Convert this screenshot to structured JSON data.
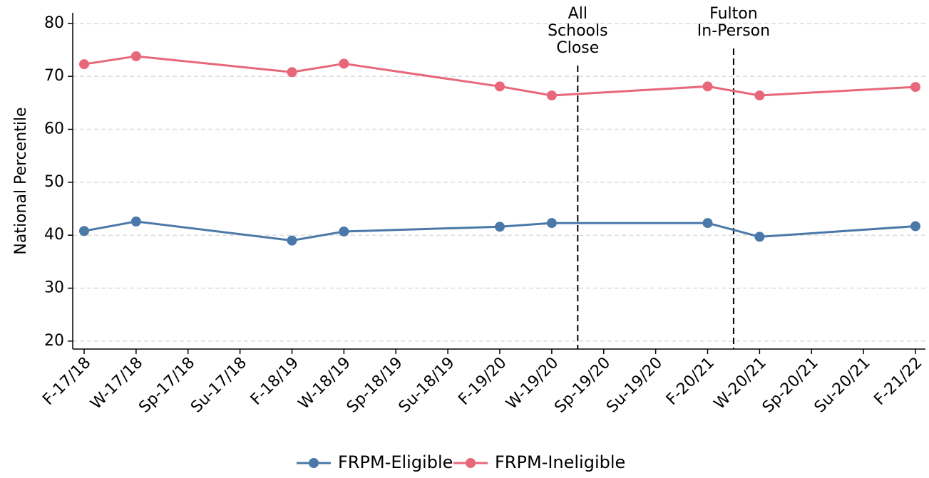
{
  "chart_data": {
    "type": "line",
    "y_label": "National Percentile",
    "categories": [
      "F-17/18",
      "W-17/18",
      "Sp-17/18",
      "Su-17/18",
      "F-18/19",
      "W-18/19",
      "Sp-18/19",
      "Su-18/19",
      "F-19/20",
      "W-19/20",
      "Sp-19/20",
      "Su-19/20",
      "F-20/21",
      "W-20/21",
      "Sp-20/21",
      "Su-20/21",
      "F-21/22"
    ],
    "series": [
      {
        "name": "FRPM-Eligible",
        "color": "#4a78a8",
        "x": [
          "F-17/18",
          "W-17/18",
          "F-18/19",
          "W-18/19",
          "F-19/20",
          "W-19/20",
          "F-20/21",
          "W-20/21",
          "F-21/22"
        ],
        "values": [
          40.8,
          42.6,
          39.0,
          40.7,
          41.6,
          42.3,
          42.3,
          39.7,
          41.7
        ]
      },
      {
        "name": "FRPM-Ineligible",
        "color": "#e8677a",
        "x": [
          "F-17/18",
          "W-17/18",
          "F-18/19",
          "W-18/19",
          "F-19/20",
          "W-19/20",
          "F-20/21",
          "W-20/21",
          "F-21/22"
        ],
        "values": [
          72.3,
          73.8,
          70.8,
          72.4,
          68.1,
          66.4,
          68.1,
          66.4,
          68.0
        ]
      }
    ],
    "annotations": [
      {
        "after": "W-19/20",
        "text": [
          "All",
          "Schools",
          "Close"
        ]
      },
      {
        "after": "F-20/21",
        "text": [
          "Fulton",
          "In-Person"
        ]
      }
    ],
    "ylim": [
      18.5,
      82
    ],
    "yticks": [
      20,
      30,
      40,
      50,
      60,
      70,
      80
    ],
    "grid": true,
    "legend": "bottom"
  }
}
